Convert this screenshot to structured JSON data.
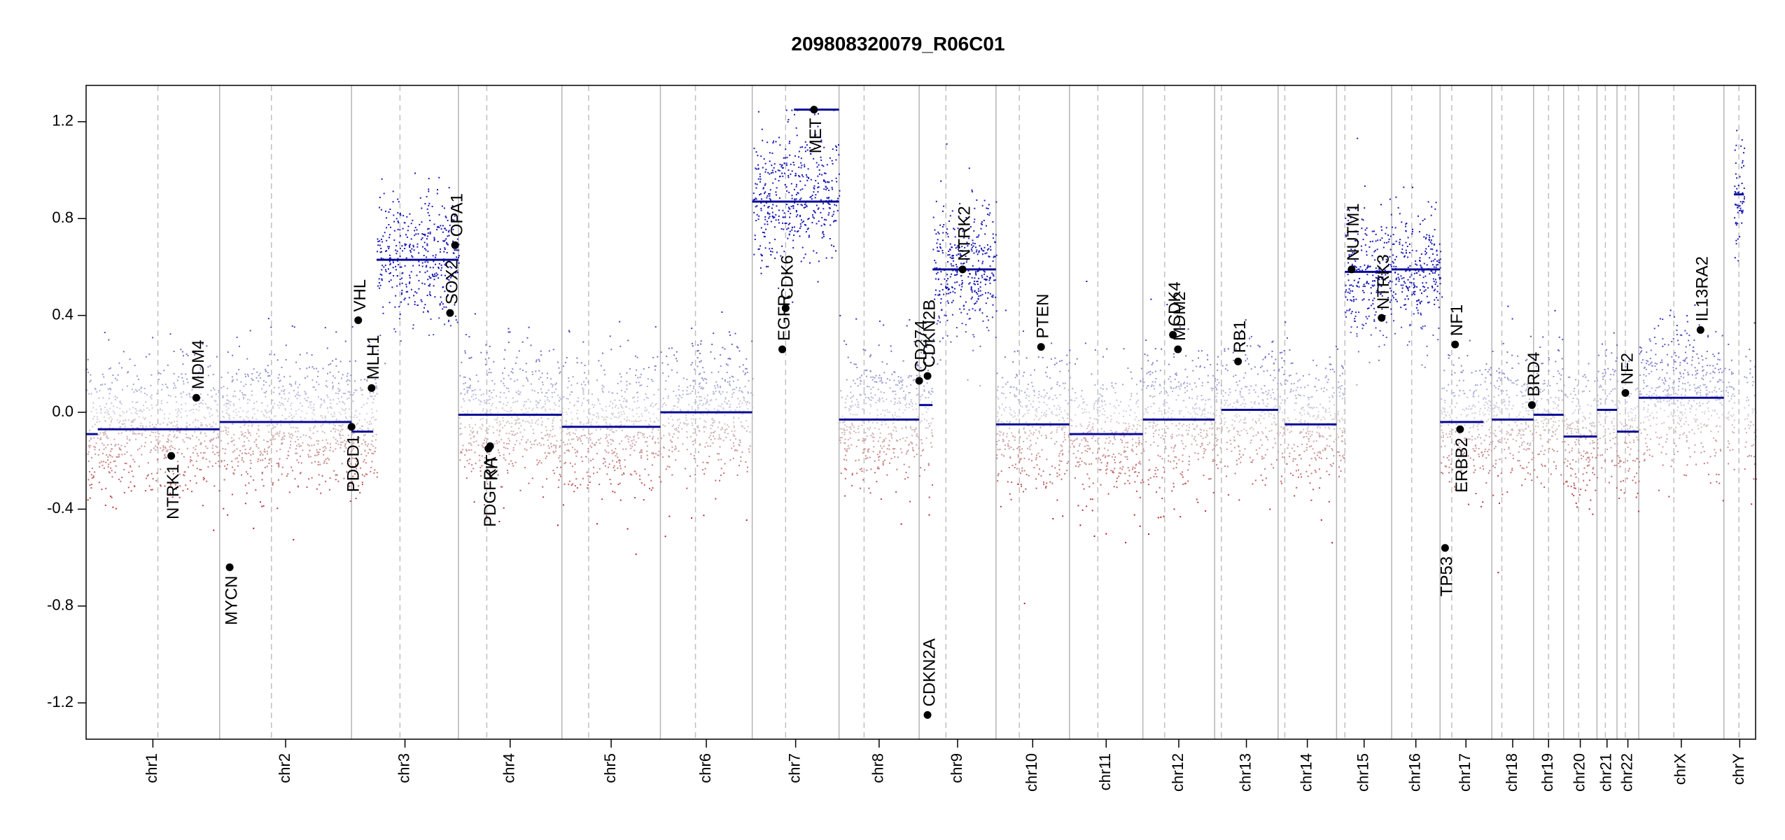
{
  "chart_data": {
    "type": "scatter",
    "title": "209808320079_R06C01",
    "xlabel": "",
    "ylabel": "",
    "ylim": [
      -1.35,
      1.35
    ],
    "yticks": [
      "-1.2",
      "-0.8",
      "-0.4",
      "0.0",
      "0.4",
      "0.8",
      "1.2"
    ],
    "ytick_values": [
      -1.2,
      -0.8,
      -0.4,
      0.0,
      0.4,
      0.8,
      1.2
    ],
    "chromosome_scale": "relative genome position (0-1)",
    "colors": {
      "gain": "#1c1cb4",
      "loss": "#b41c1c",
      "segment": "#0a0a96",
      "boundary": "#b0b0b0",
      "centromere": "#b8b8b8"
    },
    "chromosomes": [
      {
        "name": "chr1",
        "start": 0.0,
        "end": 0.08,
        "centromere": 0.043,
        "seg_mean": -0.07
      },
      {
        "name": "chr2",
        "start": 0.08,
        "end": 0.159,
        "centromere": 0.111,
        "seg_mean": -0.04
      },
      {
        "name": "chr3",
        "start": 0.159,
        "end": 0.223,
        "centromere": 0.188,
        "seg_mean": 0.63
      },
      {
        "name": "chr4",
        "start": 0.223,
        "end": 0.285,
        "centromere": 0.24,
        "seg_mean": -0.01
      },
      {
        "name": "chr5",
        "start": 0.285,
        "end": 0.344,
        "centromere": 0.301,
        "seg_mean": -0.06
      },
      {
        "name": "chr6",
        "start": 0.344,
        "end": 0.399,
        "centromere": 0.365,
        "seg_mean": 0.0
      },
      {
        "name": "chr7",
        "start": 0.399,
        "end": 0.451,
        "centromere": 0.419,
        "seg_mean": 0.87
      },
      {
        "name": "chr8",
        "start": 0.451,
        "end": 0.499,
        "centromere": 0.466,
        "seg_mean": -0.03
      },
      {
        "name": "chr9",
        "start": 0.499,
        "end": 0.545,
        "centromere": 0.515,
        "seg_mean": 0.59
      },
      {
        "name": "chr10",
        "start": 0.545,
        "end": 0.589,
        "centromere": 0.559,
        "seg_mean": -0.05
      },
      {
        "name": "chr11",
        "start": 0.589,
        "end": 0.633,
        "centromere": 0.606,
        "seg_mean": -0.09
      },
      {
        "name": "chr12",
        "start": 0.633,
        "end": 0.676,
        "centromere": 0.646,
        "seg_mean": -0.03
      },
      {
        "name": "chr13",
        "start": 0.676,
        "end": 0.714,
        "centromere": 0.68,
        "seg_mean": 0.01
      },
      {
        "name": "chr14",
        "start": 0.714,
        "end": 0.749,
        "centromere": 0.718,
        "seg_mean": -0.05
      },
      {
        "name": "chr15",
        "start": 0.749,
        "end": 0.782,
        "centromere": 0.754,
        "seg_mean": 0.58
      },
      {
        "name": "chr16",
        "start": 0.782,
        "end": 0.811,
        "centromere": 0.794,
        "seg_mean": 0.59
      },
      {
        "name": "chr17",
        "start": 0.811,
        "end": 0.842,
        "centromere": 0.818,
        "seg_mean": -0.04
      },
      {
        "name": "chr18",
        "start": 0.842,
        "end": 0.867,
        "centromere": 0.848,
        "seg_mean": -0.03
      },
      {
        "name": "chr19",
        "start": 0.867,
        "end": 0.885,
        "centromere": 0.876,
        "seg_mean": -0.01
      },
      {
        "name": "chr20",
        "start": 0.885,
        "end": 0.905,
        "centromere": 0.894,
        "seg_mean": -0.1
      },
      {
        "name": "chr21",
        "start": 0.905,
        "end": 0.917,
        "centromere": 0.91,
        "seg_mean": 0.01
      },
      {
        "name": "chr22",
        "start": 0.917,
        "end": 0.93,
        "centromere": 0.922,
        "seg_mean": -0.08
      },
      {
        "name": "chrX",
        "start": 0.93,
        "end": 0.981,
        "centromere": 0.951,
        "seg_mean": 0.06
      },
      {
        "name": "chrY",
        "start": 0.981,
        "end": 1.0,
        "centromere": 0.99,
        "seg_mean": 0.9
      }
    ],
    "segments": [
      {
        "chr": "chr1",
        "x0": 0.0,
        "x1": 0.007,
        "y": -0.09
      },
      {
        "chr": "chr1",
        "x0": 0.007,
        "x1": 0.08,
        "y": -0.07
      },
      {
        "chr": "chr2",
        "x0": 0.08,
        "x1": 0.159,
        "y": -0.04
      },
      {
        "chr": "chr3",
        "x0": 0.159,
        "x1": 0.172,
        "y": -0.08
      },
      {
        "chr": "chr3",
        "x0": 0.174,
        "x1": 0.223,
        "y": 0.63
      },
      {
        "chr": "chr4",
        "x0": 0.223,
        "x1": 0.285,
        "y": -0.01
      },
      {
        "chr": "chr5",
        "x0": 0.285,
        "x1": 0.344,
        "y": -0.06
      },
      {
        "chr": "chr6",
        "x0": 0.344,
        "x1": 0.399,
        "y": 0.0
      },
      {
        "chr": "chr7",
        "x0": 0.399,
        "x1": 0.451,
        "y": 0.87
      },
      {
        "chr": "chr7",
        "x0": 0.424,
        "x1": 0.451,
        "y": 1.25
      },
      {
        "chr": "chr8",
        "x0": 0.451,
        "x1": 0.499,
        "y": -0.03
      },
      {
        "chr": "chr9",
        "x0": 0.499,
        "x1": 0.507,
        "y": 0.03
      },
      {
        "chr": "chr9",
        "x0": 0.507,
        "x1": 0.545,
        "y": 0.59
      },
      {
        "chr": "chr10",
        "x0": 0.545,
        "x1": 0.589,
        "y": -0.05
      },
      {
        "chr": "chr11",
        "x0": 0.589,
        "x1": 0.633,
        "y": -0.09
      },
      {
        "chr": "chr12",
        "x0": 0.633,
        "x1": 0.676,
        "y": -0.03
      },
      {
        "chr": "chr13",
        "x0": 0.68,
        "x1": 0.714,
        "y": 0.01
      },
      {
        "chr": "chr14",
        "x0": 0.718,
        "x1": 0.749,
        "y": -0.05
      },
      {
        "chr": "chr15",
        "x0": 0.754,
        "x1": 0.782,
        "y": 0.58
      },
      {
        "chr": "chr16",
        "x0": 0.782,
        "x1": 0.811,
        "y": 0.59
      },
      {
        "chr": "chr17",
        "x0": 0.811,
        "x1": 0.837,
        "y": -0.04
      },
      {
        "chr": "chr18",
        "x0": 0.842,
        "x1": 0.867,
        "y": -0.03
      },
      {
        "chr": "chr19",
        "x0": 0.867,
        "x1": 0.885,
        "y": -0.01
      },
      {
        "chr": "chr20",
        "x0": 0.885,
        "x1": 0.905,
        "y": -0.1
      },
      {
        "chr": "chr21",
        "x0": 0.905,
        "x1": 0.917,
        "y": 0.01
      },
      {
        "chr": "chr22",
        "x0": 0.917,
        "x1": 0.93,
        "y": -0.08
      },
      {
        "chr": "chrX",
        "x0": 0.93,
        "x1": 0.981,
        "y": 0.06
      },
      {
        "chr": "chrY",
        "x0": 0.987,
        "x1": 0.993,
        "y": 0.9
      }
    ],
    "genes": [
      {
        "name": "NTRK1",
        "x": 0.051,
        "y": -0.18,
        "dir": "down"
      },
      {
        "name": "MDM4",
        "x": 0.066,
        "y": 0.06,
        "dir": "up"
      },
      {
        "name": "MYCN",
        "x": 0.086,
        "y": -0.64,
        "dir": "down"
      },
      {
        "name": "PDCD1",
        "x": 0.159,
        "y": -0.06,
        "dir": "down"
      },
      {
        "name": "VHL",
        "x": 0.163,
        "y": 0.38,
        "dir": "up"
      },
      {
        "name": "MLH1",
        "x": 0.171,
        "y": 0.1,
        "dir": "up"
      },
      {
        "name": "SOX2",
        "x": 0.218,
        "y": 0.41,
        "dir": "up"
      },
      {
        "name": "OPA1",
        "x": 0.221,
        "y": 0.69,
        "dir": "up"
      },
      {
        "name": "PDGFRA",
        "x": 0.241,
        "y": -0.15,
        "dir": "down"
      },
      {
        "name": "KIT",
        "x": 0.242,
        "y": -0.14,
        "dir": "down"
      },
      {
        "name": "EGFR",
        "x": 0.417,
        "y": 0.26,
        "dir": "up"
      },
      {
        "name": "CDK6",
        "x": 0.419,
        "y": 0.43,
        "dir": "up"
      },
      {
        "name": "MET",
        "x": 0.436,
        "y": 1.25,
        "dir": "down"
      },
      {
        "name": "CD274",
        "x": 0.499,
        "y": 0.13,
        "dir": "up"
      },
      {
        "name": "CDKN2B",
        "x": 0.504,
        "y": 0.15,
        "dir": "up"
      },
      {
        "name": "CDKN2A",
        "x": 0.504,
        "y": -1.25,
        "dir": "up"
      },
      {
        "name": "NTRK2",
        "x": 0.525,
        "y": 0.59,
        "dir": "up"
      },
      {
        "name": "PTEN",
        "x": 0.572,
        "y": 0.27,
        "dir": "up"
      },
      {
        "name": "CDK4",
        "x": 0.651,
        "y": 0.32,
        "dir": "up"
      },
      {
        "name": "MDM2",
        "x": 0.654,
        "y": 0.26,
        "dir": "up"
      },
      {
        "name": "RB1",
        "x": 0.69,
        "y": 0.21,
        "dir": "up"
      },
      {
        "name": "NUTM1",
        "x": 0.758,
        "y": 0.59,
        "dir": "up"
      },
      {
        "name": "NTRK3",
        "x": 0.776,
        "y": 0.39,
        "dir": "up"
      },
      {
        "name": "TP53",
        "x": 0.814,
        "y": -0.56,
        "dir": "down"
      },
      {
        "name": "NF1",
        "x": 0.82,
        "y": 0.28,
        "dir": "up"
      },
      {
        "name": "ERBB2",
        "x": 0.823,
        "y": -0.07,
        "dir": "down"
      },
      {
        "name": "BRD4",
        "x": 0.866,
        "y": 0.03,
        "dir": "up"
      },
      {
        "name": "NF2",
        "x": 0.922,
        "y": 0.08,
        "dir": "up"
      },
      {
        "name": "IL13RA2",
        "x": 0.967,
        "y": 0.34,
        "dir": "up"
      }
    ]
  }
}
